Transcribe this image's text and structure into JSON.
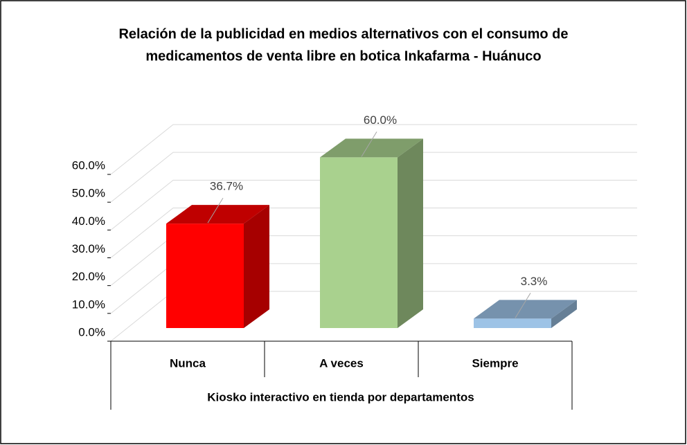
{
  "chart_data": {
    "type": "bar3d",
    "title": [
      "Relación de la publicidad en medios alternativos con el consumo de",
      "medicamentos de venta libre en botica Inkafarma - Huánuco"
    ],
    "x_label": "Kiosko interactivo en tienda por departamentos",
    "categories": [
      "Nunca",
      "A veces",
      "Siempre"
    ],
    "values": [
      36.7,
      60.0,
      3.3
    ],
    "value_labels": [
      "36.7%",
      "60.0%",
      "3.3%"
    ],
    "colors": [
      "#ff0000",
      "#a9d18e",
      "#9dc3e6"
    ],
    "ylim": [
      0,
      60
    ],
    "yticks": [
      {
        "value": 0,
        "label": "0.0%"
      },
      {
        "value": 10,
        "label": "10.0%"
      },
      {
        "value": 20,
        "label": "20.0%"
      },
      {
        "value": 30,
        "label": "30.0%"
      },
      {
        "value": 40,
        "label": "40.0%"
      },
      {
        "value": 50,
        "label": "50.0%"
      },
      {
        "value": 60,
        "label": "60.0%"
      }
    ],
    "grid": true
  }
}
